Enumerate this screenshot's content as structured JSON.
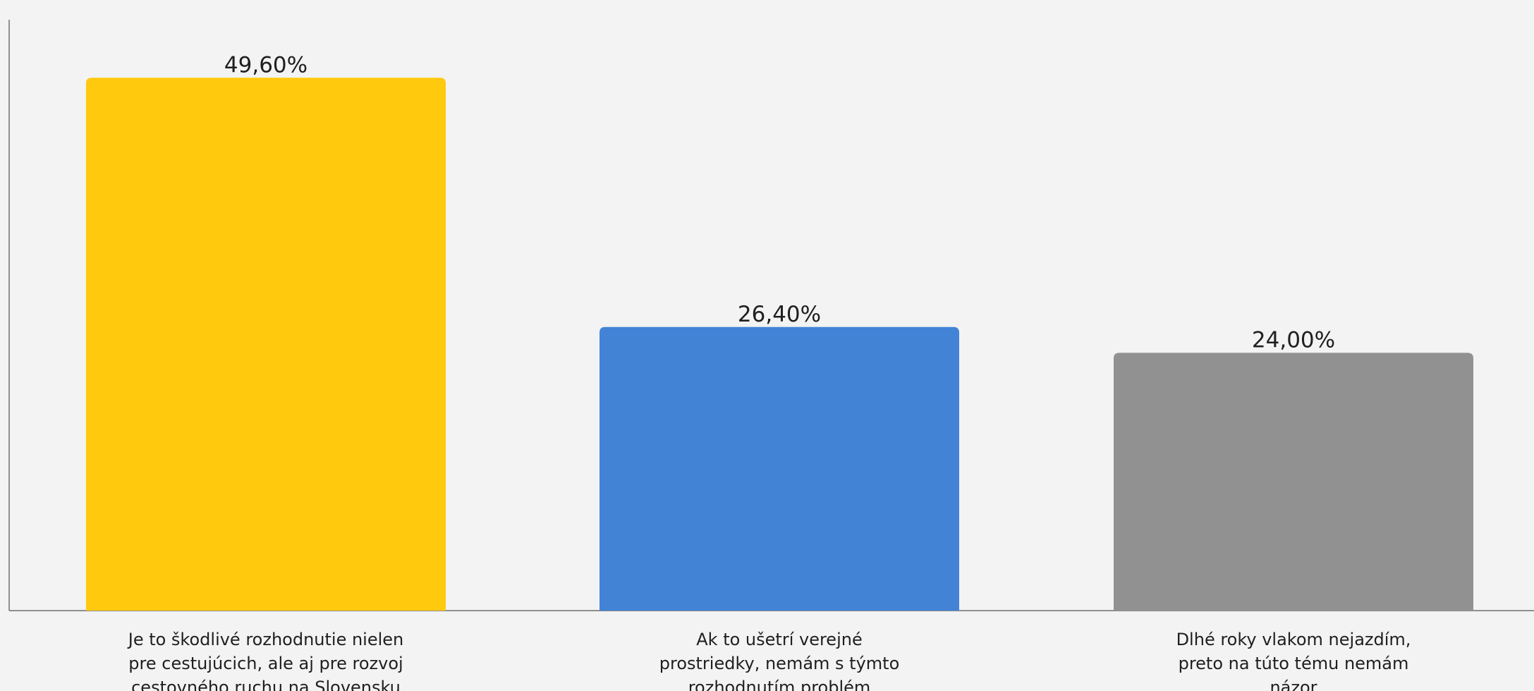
{
  "chart_data": {
    "type": "bar",
    "categories": [
      "Je to škodlivé rozhodnutie nielen pre cestujúcich, ale aj pre rozvoj cestovného ruchu na Slovensku",
      "Ak to ušetrí verejné prostriedky, nemám s týmto rozhodnutím problém",
      "Dlhé roky vlakom nejazdím, preto na túto tému nemám názor"
    ],
    "category_lines": [
      [
        "Je to škodlivé rozhodnutie nielen",
        "pre cestujúcich, ale aj pre rozvoj",
        "cestovného ruchu na Slovensku"
      ],
      [
        "Ak to ušetrí verejné",
        "prostriedky, nemám s týmto",
        "rozhodnutím problém"
      ],
      [
        "Dlhé roky vlakom nejazdím,",
        "preto na túto tému nemám",
        "názor"
      ]
    ],
    "values": [
      49.6,
      26.4,
      24.0
    ],
    "value_labels": [
      "49,60%",
      "26,40%",
      "24,00%"
    ],
    "colors": [
      "#FFC90E",
      "#4283D6",
      "#919191"
    ],
    "title": "",
    "xlabel": "",
    "ylabel": "",
    "ylim": [
      0,
      55
    ],
    "grid": false,
    "legend": "none"
  }
}
